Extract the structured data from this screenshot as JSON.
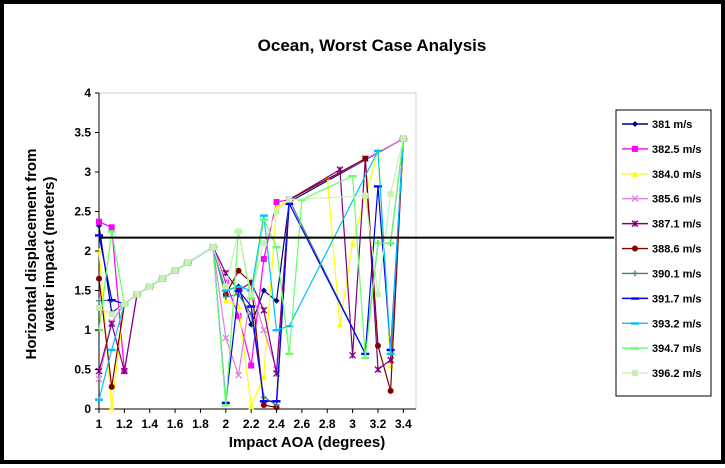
{
  "chart_data": {
    "type": "line",
    "title": "Ocean, Worst Case Analysis",
    "xlabel": "Impact AOA (degrees)",
    "ylabel_lines": [
      "Horizontal displacement from",
      "water impact (meters)"
    ],
    "xlim": [
      1,
      3.5
    ],
    "ylim": [
      0,
      4
    ],
    "xticks": [
      "1",
      "1.2",
      "1.4",
      "1.6",
      "1.8",
      "2",
      "2.2",
      "2.4",
      "2.6",
      "2.8",
      "3",
      "3.2",
      "3.4"
    ],
    "yticks": [
      "0",
      "0.5",
      "1",
      "1.5",
      "2",
      "2.5",
      "3",
      "3.5",
      "4"
    ],
    "threshold": 2.17,
    "legend_position": "right",
    "series": [
      {
        "name": "381 m/s",
        "color": "#000080",
        "marker": "diamond",
        "points": [
          [
            1,
            2.32
          ],
          [
            1.1,
            1.22
          ],
          [
            1.2,
            1.33
          ],
          [
            1.3,
            1.45
          ],
          [
            1.4,
            1.55
          ],
          [
            1.5,
            1.65
          ],
          [
            1.6,
            1.75
          ],
          [
            1.7,
            1.85
          ],
          [
            1.9,
            2.05
          ],
          [
            2,
            1.5
          ],
          [
            2.1,
            1.55
          ],
          [
            2.2,
            1.07
          ],
          [
            2.3,
            1.5
          ],
          [
            2.4,
            1.37
          ],
          [
            2.5,
            2.62
          ],
          [
            3.4,
            3.42
          ]
        ]
      },
      {
        "name": "382.5 m/s",
        "color": "#ff00ff",
        "marker": "square",
        "points": [
          [
            1,
            2.37
          ],
          [
            1.1,
            2.3
          ],
          [
            1.2,
            0.48
          ],
          [
            1.3,
            1.45
          ],
          [
            1.4,
            1.55
          ],
          [
            1.5,
            1.65
          ],
          [
            1.6,
            1.75
          ],
          [
            1.7,
            1.85
          ],
          [
            1.9,
            2.05
          ],
          [
            2,
            1.6
          ],
          [
            2.1,
            1.18
          ],
          [
            2.2,
            0.55
          ],
          [
            2.3,
            1.9
          ],
          [
            2.4,
            2.62
          ],
          [
            2.5,
            2.65
          ],
          [
            3.4,
            3.42
          ]
        ]
      },
      {
        "name": "384.0 m/s",
        "color": "#ffff00",
        "marker": "triangle",
        "points": [
          [
            1,
            2.0
          ],
          [
            1.1,
            0.02
          ],
          [
            1.2,
            1.33
          ],
          [
            1.3,
            1.45
          ],
          [
            1.4,
            1.55
          ],
          [
            1.5,
            1.65
          ],
          [
            1.6,
            1.75
          ],
          [
            1.7,
            1.85
          ],
          [
            1.9,
            2.05
          ],
          [
            2,
            1.38
          ],
          [
            2.1,
            1.3
          ],
          [
            2.2,
            0.03
          ],
          [
            2.3,
            0.42
          ],
          [
            2.4,
            2.55
          ],
          [
            2.5,
            2.65
          ],
          [
            2.8,
            2.93
          ],
          [
            2.9,
            1.07
          ],
          [
            3,
            2.1
          ],
          [
            3.2,
            3.27
          ],
          [
            3.3,
            0.55
          ],
          [
            3.4,
            3.42
          ]
        ]
      },
      {
        "name": "385.6 m/s",
        "color": "#e080e0",
        "marker": "x",
        "points": [
          [
            1,
            0.38
          ],
          [
            1.1,
            1.1
          ],
          [
            1.2,
            1.33
          ],
          [
            1.3,
            1.45
          ],
          [
            1.4,
            1.55
          ],
          [
            1.5,
            1.65
          ],
          [
            1.6,
            1.75
          ],
          [
            1.7,
            1.85
          ],
          [
            1.9,
            2.05
          ],
          [
            2,
            0.9
          ],
          [
            2.1,
            0.43
          ],
          [
            2.2,
            1.5
          ],
          [
            2.3,
            1.0
          ],
          [
            2.4,
            0.5
          ],
          [
            2.5,
            2.65
          ],
          [
            3.4,
            3.42
          ]
        ]
      },
      {
        "name": "387.1 m/s",
        "color": "#800080",
        "marker": "star",
        "points": [
          [
            1,
            0.48
          ],
          [
            1.1,
            1.08
          ],
          [
            1.2,
            0.48
          ],
          [
            1.3,
            1.45
          ],
          [
            1.4,
            1.55
          ],
          [
            1.5,
            1.65
          ],
          [
            1.6,
            1.75
          ],
          [
            1.7,
            1.85
          ],
          [
            1.9,
            2.05
          ],
          [
            2,
            1.72
          ],
          [
            2.1,
            1.5
          ],
          [
            2.2,
            1.6
          ],
          [
            2.3,
            1.25
          ],
          [
            2.4,
            0.45
          ],
          [
            2.5,
            2.65
          ],
          [
            2.9,
            3.03
          ],
          [
            3,
            0.68
          ],
          [
            3.1,
            3.17
          ],
          [
            3.2,
            0.5
          ],
          [
            3.3,
            0.62
          ],
          [
            3.4,
            3.42
          ]
        ]
      },
      {
        "name": "388.6 m/s",
        "color": "#800000",
        "marker": "circle",
        "points": [
          [
            1,
            1.65
          ],
          [
            1.1,
            0.28
          ],
          [
            1.2,
            1.33
          ],
          [
            1.3,
            1.45
          ],
          [
            1.4,
            1.55
          ],
          [
            1.5,
            1.65
          ],
          [
            1.6,
            1.75
          ],
          [
            1.7,
            1.85
          ],
          [
            1.9,
            2.05
          ],
          [
            2,
            1.45
          ],
          [
            2.1,
            1.75
          ],
          [
            2.2,
            1.6
          ],
          [
            2.3,
            0.05
          ],
          [
            2.4,
            0.02
          ],
          [
            2.5,
            2.65
          ],
          [
            3.1,
            3.17
          ],
          [
            3.2,
            0.8
          ],
          [
            3.3,
            0.23
          ],
          [
            3.4,
            3.42
          ]
        ]
      },
      {
        "name": "390.1 m/s",
        "color": "#408080",
        "marker": "plus",
        "points": [
          [
            1,
            1.37
          ],
          [
            1.1,
            1.38
          ],
          [
            1.2,
            1.33
          ],
          [
            1.3,
            1.45
          ],
          [
            1.4,
            1.55
          ],
          [
            1.5,
            1.65
          ],
          [
            1.6,
            1.75
          ],
          [
            1.7,
            1.85
          ],
          [
            1.9,
            2.05
          ],
          [
            2,
            1.42
          ],
          [
            2.1,
            1.45
          ],
          [
            2.2,
            1.2
          ],
          [
            2.3,
            0.15
          ],
          [
            2.4,
            0.05
          ],
          [
            2.5,
            2.65
          ],
          [
            3.1,
            0.7
          ],
          [
            3.2,
            2.1
          ],
          [
            3.3,
            2.1
          ],
          [
            3.4,
            3.42
          ]
        ]
      },
      {
        "name": "391.7 m/s",
        "color": "#0000ff",
        "marker": "dash",
        "points": [
          [
            1,
            2.2
          ],
          [
            1.1,
            1.38
          ],
          [
            1.2,
            1.33
          ],
          [
            1.3,
            1.45
          ],
          [
            1.4,
            1.55
          ],
          [
            1.5,
            1.65
          ],
          [
            1.6,
            1.75
          ],
          [
            1.7,
            1.85
          ],
          [
            1.9,
            2.05
          ],
          [
            2,
            0.08
          ],
          [
            2.1,
            1.5
          ],
          [
            2.2,
            1.3
          ],
          [
            2.3,
            0.1
          ],
          [
            2.4,
            0.1
          ],
          [
            2.5,
            2.6
          ],
          [
            3.1,
            0.7
          ],
          [
            3.2,
            2.82
          ],
          [
            3.3,
            0.75
          ],
          [
            3.4,
            3.42
          ]
        ]
      },
      {
        "name": "393.2 m/s",
        "color": "#00c0ff",
        "marker": "dash",
        "points": [
          [
            1,
            0.12
          ],
          [
            1.1,
            0.75
          ],
          [
            1.2,
            1.33
          ],
          [
            1.3,
            1.45
          ],
          [
            1.4,
            1.55
          ],
          [
            1.5,
            1.65
          ],
          [
            1.6,
            1.75
          ],
          [
            1.7,
            1.85
          ],
          [
            1.9,
            2.05
          ],
          [
            2,
            1.5
          ],
          [
            2.1,
            1.55
          ],
          [
            2.2,
            1.5
          ],
          [
            2.3,
            2.45
          ],
          [
            2.4,
            1.0
          ],
          [
            2.5,
            1.05
          ],
          [
            3.2,
            3.27
          ],
          [
            3.3,
            0.7
          ],
          [
            3.4,
            3.42
          ]
        ]
      },
      {
        "name": "394.7 m/s",
        "color": "#66ff66",
        "marker": "dash",
        "points": [
          [
            1,
            1.0
          ],
          [
            1.1,
            2.25
          ],
          [
            1.2,
            1.33
          ],
          [
            1.3,
            1.45
          ],
          [
            1.4,
            1.55
          ],
          [
            1.5,
            1.65
          ],
          [
            1.6,
            1.75
          ],
          [
            1.7,
            1.85
          ],
          [
            1.9,
            2.05
          ],
          [
            2,
            0.05
          ],
          [
            2.1,
            2.25
          ],
          [
            2.2,
            1.4
          ],
          [
            2.3,
            2.4
          ],
          [
            2.4,
            2.05
          ],
          [
            2.5,
            0.7
          ],
          [
            2.6,
            2.65
          ],
          [
            3,
            2.95
          ],
          [
            3.1,
            0.65
          ],
          [
            3.2,
            2.1
          ],
          [
            3.3,
            2.1
          ],
          [
            3.4,
            3.42
          ]
        ]
      },
      {
        "name": "396.2 m/s",
        "color": "#c8f0b4",
        "marker": "square",
        "points": [
          [
            1,
            1.28
          ],
          [
            1.1,
            1.2
          ],
          [
            1.2,
            1.33
          ],
          [
            1.3,
            1.45
          ],
          [
            1.4,
            1.55
          ],
          [
            1.5,
            1.65
          ],
          [
            1.6,
            1.75
          ],
          [
            1.7,
            1.85
          ],
          [
            1.9,
            2.05
          ],
          [
            2,
            1.55
          ],
          [
            2.1,
            2.25
          ],
          [
            2.2,
            1.45
          ],
          [
            2.3,
            2.1
          ],
          [
            2.4,
            2.5
          ],
          [
            2.5,
            2.65
          ],
          [
            3.1,
            2.7
          ],
          [
            3.2,
            1.45
          ],
          [
            3.3,
            2.72
          ],
          [
            3.4,
            3.42
          ]
        ]
      }
    ]
  }
}
